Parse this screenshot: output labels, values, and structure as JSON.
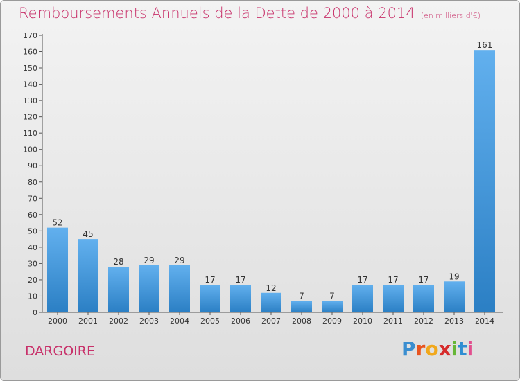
{
  "title": "Remboursements Annuels de la Dette de 2000 à 2014",
  "unit": "(en milliers d'€)",
  "commune": "DARGOIRE",
  "logo": {
    "letters": [
      "P",
      "r",
      "o",
      "x",
      "i",
      "t",
      "i"
    ],
    "colors": [
      "#3a8ed0",
      "#e8541f",
      "#f1a81c",
      "#d62b2b",
      "#66b636",
      "#2f8ed2",
      "#e24f8e"
    ]
  },
  "colors": {
    "bar_light": "#62b0ee",
    "bar_dark": "#2b7fc4",
    "accent": "#c8316a"
  },
  "chart_data": {
    "type": "bar",
    "title": "Remboursements Annuels de la Dette de 2000 à 2014",
    "xlabel": "",
    "ylabel": "(en milliers d'€)",
    "categories": [
      "2000",
      "2001",
      "2002",
      "2003",
      "2004",
      "2005",
      "2006",
      "2007",
      "2008",
      "2009",
      "2010",
      "2011",
      "2012",
      "2013",
      "2014"
    ],
    "values": [
      52,
      45,
      28,
      29,
      29,
      17,
      17,
      12,
      7,
      7,
      17,
      17,
      17,
      19,
      161
    ],
    "ylim": [
      0,
      170
    ],
    "yticks": [
      0,
      10,
      20,
      30,
      40,
      50,
      60,
      70,
      80,
      90,
      100,
      110,
      120,
      130,
      140,
      150,
      160,
      170
    ],
    "grid": false,
    "legend": "none"
  }
}
